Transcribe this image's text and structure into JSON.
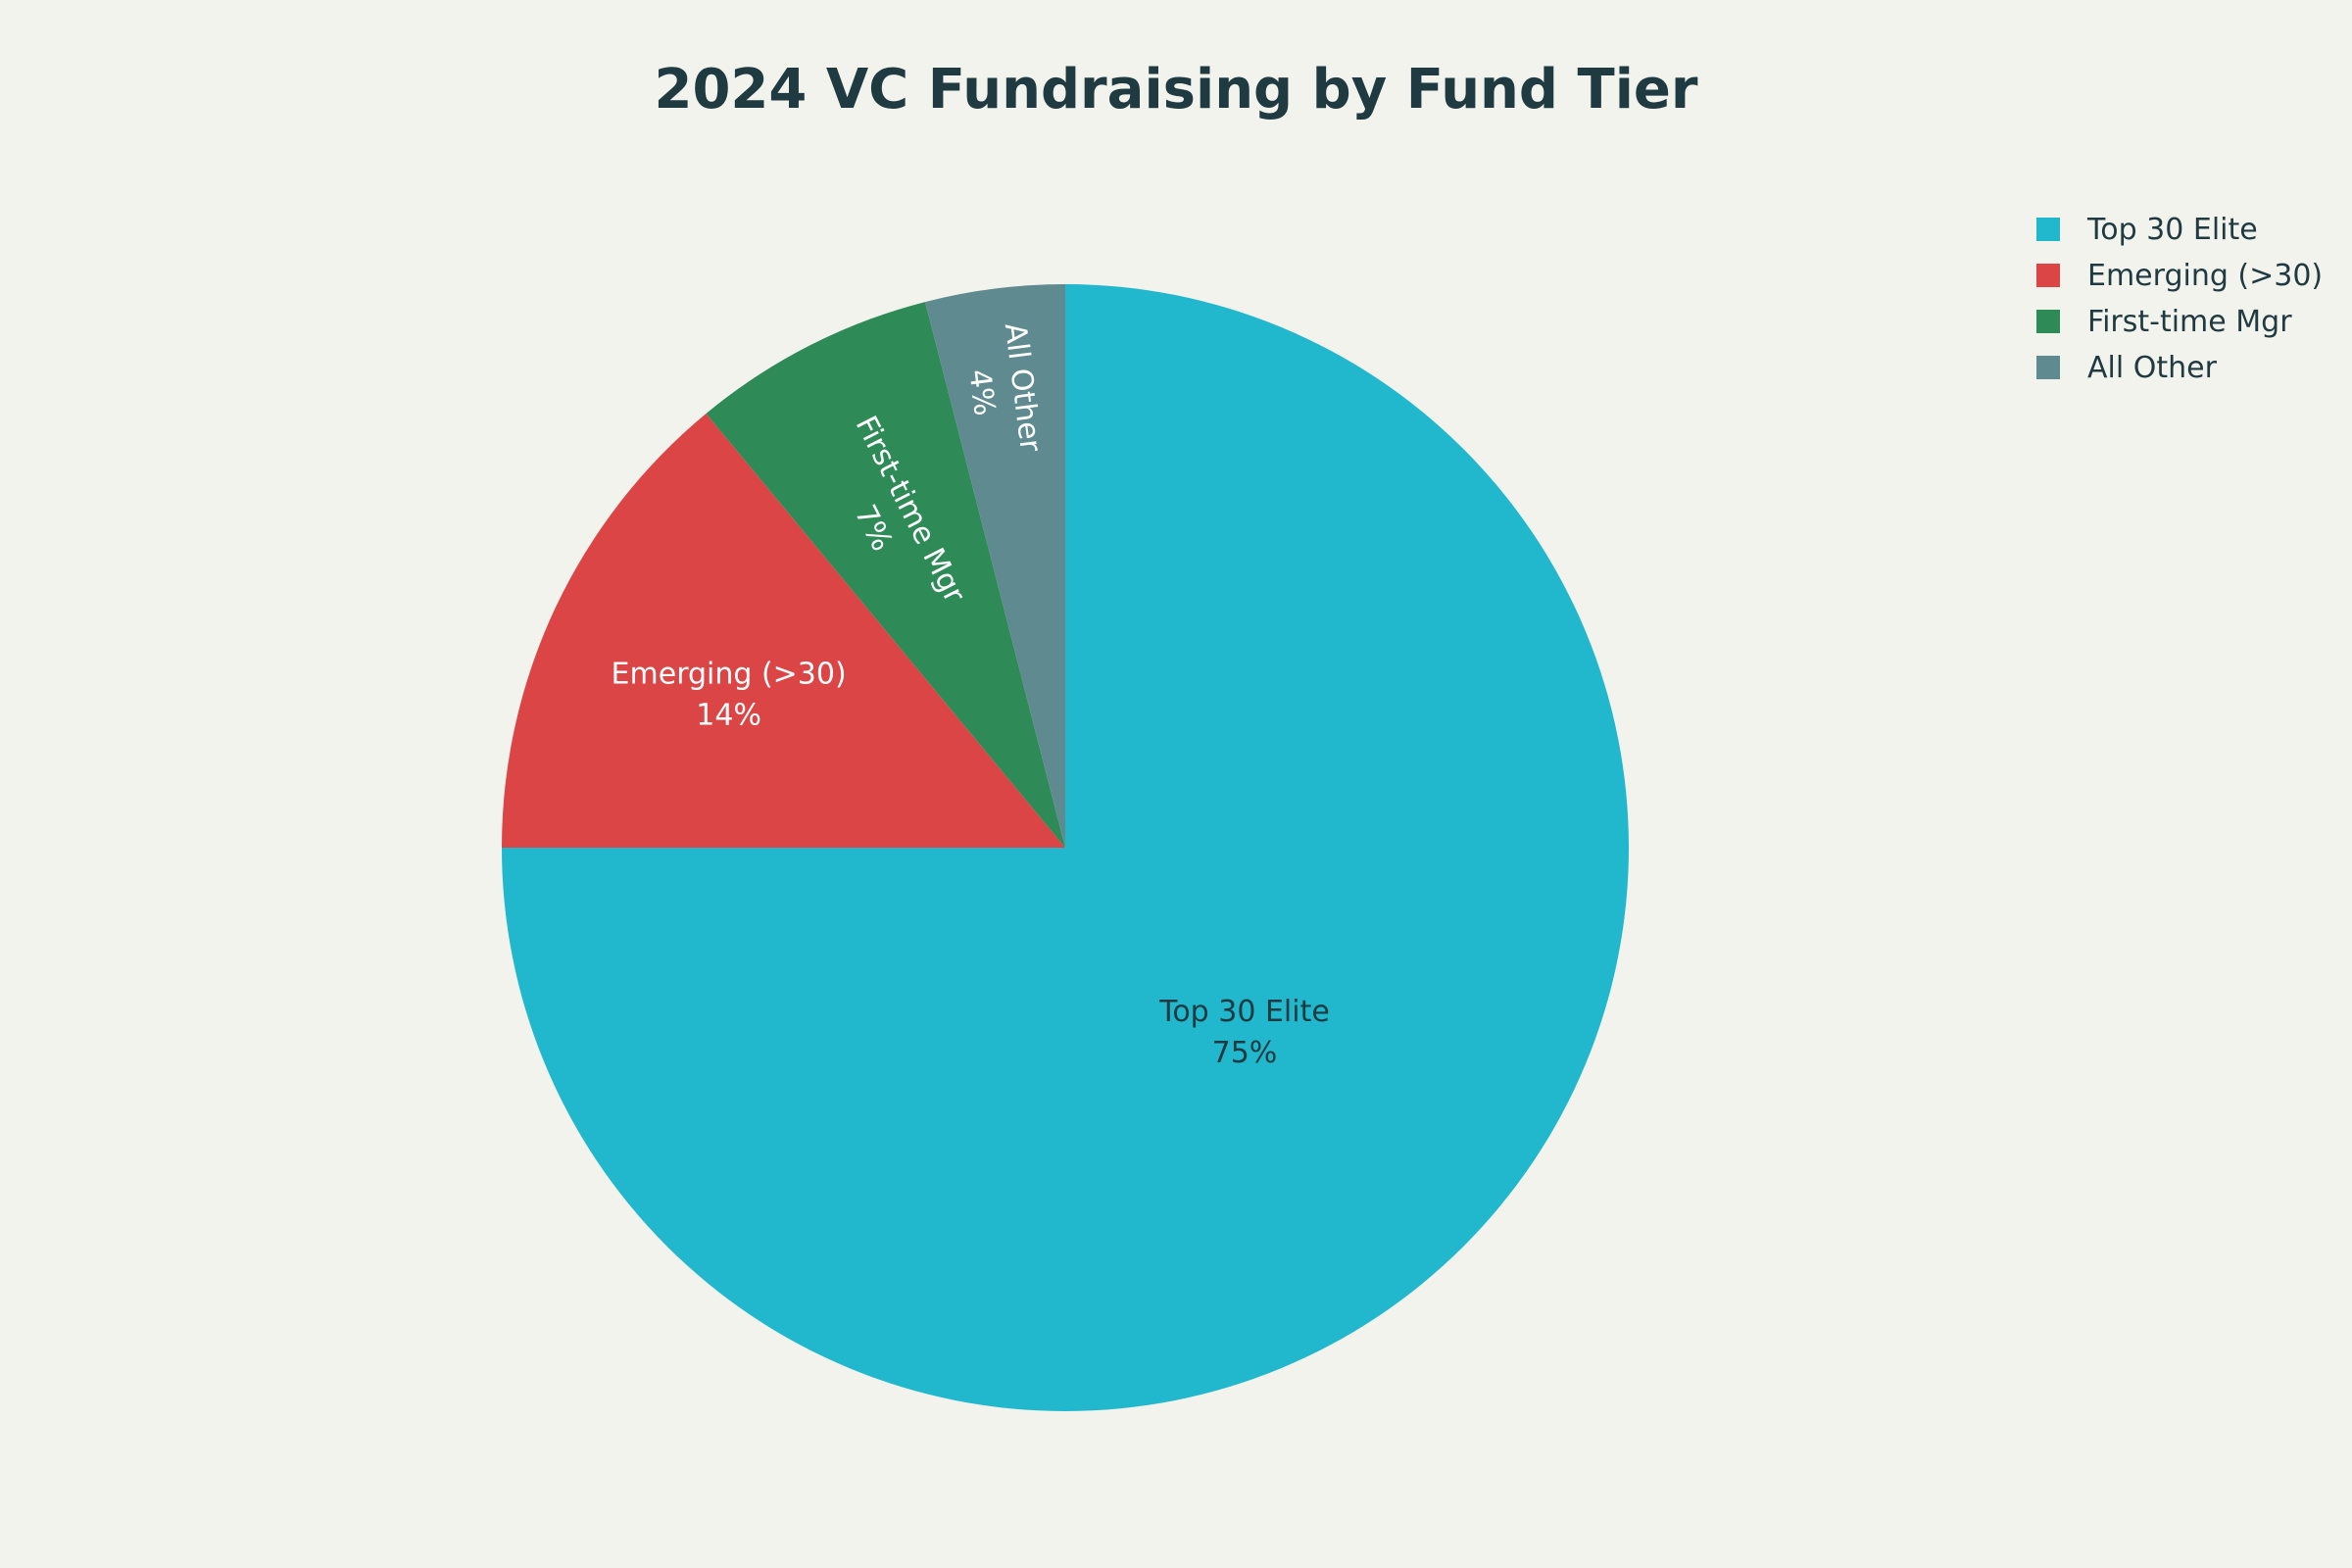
{
  "chart_data": {
    "type": "pie",
    "title": "2024 VC Fundraising by Fund Tier",
    "categories": [
      "Top 30 Elite",
      "Emerging (>30)",
      "First-time Mgr",
      "All Other"
    ],
    "values": [
      75,
      14,
      7,
      4
    ],
    "value_labels": [
      "75%",
      "14%",
      "7%",
      "4%"
    ],
    "colors": [
      "#21b7cc",
      "#db4546",
      "#2e8b57",
      "#5f8a8f"
    ],
    "label_colors": [
      "#1f3a40",
      "#ffffff",
      "#ffffff",
      "#ffffff"
    ],
    "legend": {
      "placement": "top-right",
      "items": [
        "Top 30 Elite",
        "Emerging (>30)",
        "First-time Mgr",
        "All Other"
      ]
    }
  }
}
